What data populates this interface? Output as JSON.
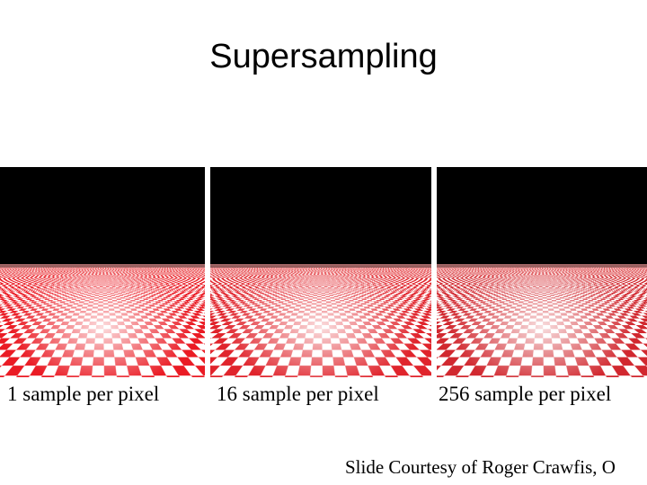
{
  "title": "Supersampling",
  "panels": [
    {
      "caption": "1 sample per pixel"
    },
    {
      "caption": "16 sample per pixel"
    },
    {
      "caption": "256 sample per pixel"
    }
  ],
  "credit": "Slide Courtesy of Roger Crawfis, O"
}
